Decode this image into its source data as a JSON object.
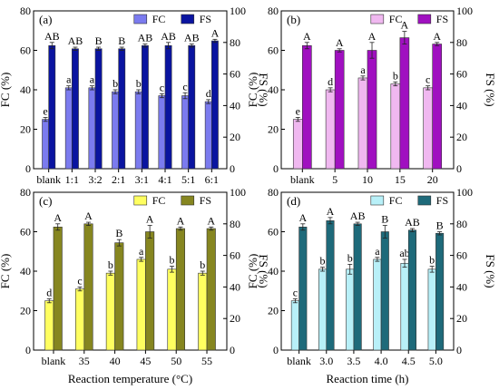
{
  "chart_data": [
    {
      "type": "bar",
      "panel_label": "(a)",
      "xlabel": "",
      "ylabel_left": "FC (%)",
      "ylabel_right": "FS (%)",
      "ylim_left": [
        0,
        80
      ],
      "ylim_right": [
        0,
        100
      ],
      "yticks_left": [
        "0",
        "20",
        "40",
        "60",
        "80"
      ],
      "yticks_right": [
        "0",
        "20",
        "40",
        "60",
        "80",
        "100"
      ],
      "legend_position": "top",
      "categories": [
        "blank",
        "1:1",
        "3:2",
        "2:1",
        "3:1",
        "4:1",
        "5:1",
        "6:1"
      ],
      "series": [
        {
          "name": "FC",
          "axis": "left",
          "color": "#7b7bef",
          "values": [
            25,
            41,
            41,
            39,
            39,
            37,
            37,
            34
          ],
          "errors": [
            1,
            1,
            1,
            1,
            1,
            1,
            1.5,
            1
          ],
          "labels": [
            "e",
            "a",
            "a",
            "b",
            "b",
            "c",
            "c",
            "d"
          ]
        },
        {
          "name": "FS",
          "axis": "right",
          "color": "#0a14a0",
          "values": [
            78,
            76,
            76,
            76,
            78,
            78,
            78,
            81
          ],
          "errors": [
            2,
            1,
            1,
            1,
            1,
            2,
            1,
            1
          ],
          "labels": [
            "AB",
            "AB",
            "B",
            "B",
            "AB",
            "AB",
            "AB",
            "A"
          ]
        }
      ]
    },
    {
      "type": "bar",
      "panel_label": "(b)",
      "xlabel": "",
      "ylabel_left": "FC (%)",
      "ylabel_right": "FS (%)",
      "ylim_left": [
        0,
        80
      ],
      "ylim_right": [
        0,
        100
      ],
      "yticks_left": [
        "0",
        "20",
        "40",
        "60",
        "80"
      ],
      "yticks_right": [
        "0",
        "20",
        "40",
        "60",
        "80",
        "100"
      ],
      "legend_position": "top",
      "categories": [
        "blank",
        "5",
        "10",
        "15",
        "20"
      ],
      "series": [
        {
          "name": "FC",
          "axis": "left",
          "color": "#f0b8f0",
          "values": [
            25,
            40,
            46,
            43,
            41
          ],
          "errors": [
            1,
            1,
            1,
            1,
            1
          ],
          "labels": [
            "e",
            "d",
            "a",
            "b",
            "c"
          ]
        },
        {
          "name": "FS",
          "axis": "right",
          "color": "#a010c0",
          "values": [
            78,
            75,
            75,
            83,
            79
          ],
          "errors": [
            2,
            1,
            5,
            4,
            1
          ],
          "labels": [
            "A",
            "A",
            "A",
            "A",
            "A"
          ]
        }
      ]
    },
    {
      "type": "bar",
      "panel_label": "(c)",
      "xlabel": "Reaction temperature (°C)",
      "ylabel_left": "FC (%)",
      "ylabel_right": "FS (%)",
      "ylim_left": [
        0,
        80
      ],
      "ylim_right": [
        0,
        100
      ],
      "yticks_left": [
        "0",
        "20",
        "40",
        "60",
        "80"
      ],
      "yticks_right": [
        "0",
        "20",
        "40",
        "60",
        "80",
        "100"
      ],
      "legend_position": "top",
      "categories": [
        "blank",
        "35",
        "40",
        "45",
        "50",
        "55"
      ],
      "series": [
        {
          "name": "FC",
          "axis": "left",
          "color": "#ffff60",
          "values": [
            25,
            31,
            39,
            46,
            41,
            39
          ],
          "errors": [
            1,
            1,
            1,
            1,
            1.5,
            1
          ],
          "labels": [
            "d",
            "c",
            "b",
            "a",
            "b",
            "b"
          ]
        },
        {
          "name": "FS",
          "axis": "right",
          "color": "#868620",
          "values": [
            78,
            80,
            68,
            75,
            77,
            77
          ],
          "errors": [
            2,
            1,
            2,
            4,
            1,
            1
          ],
          "labels": [
            "A",
            "A",
            "B",
            "A",
            "A",
            "A"
          ]
        }
      ]
    },
    {
      "type": "bar",
      "panel_label": "(d)",
      "xlabel": "Reaction time (h)",
      "ylabel_left": "FC (%)",
      "ylabel_right": "FS (%)",
      "ylim_left": [
        0,
        80
      ],
      "ylim_right": [
        0,
        100
      ],
      "yticks_left": [
        "0",
        "20",
        "40",
        "60",
        "80"
      ],
      "yticks_right": [
        "0",
        "20",
        "40",
        "60",
        "80",
        "100"
      ],
      "legend_position": "top",
      "categories": [
        "blank",
        "3.0",
        "3.5",
        "4.0",
        "4.5",
        "5.0"
      ],
      "series": [
        {
          "name": "FC",
          "axis": "left",
          "color": "#b8f0f8",
          "values": [
            25,
            41,
            41,
            46,
            44,
            41
          ],
          "errors": [
            1,
            1,
            2.5,
            1,
            2,
            1.5
          ],
          "labels": [
            "c",
            "b",
            "b",
            "a",
            "ab",
            "b"
          ]
        },
        {
          "name": "FS",
          "axis": "right",
          "color": "#1e6a7a",
          "values": [
            78,
            82,
            80,
            75,
            76,
            74
          ],
          "errors": [
            2,
            2,
            1,
            4,
            1,
            1
          ],
          "labels": [
            "A",
            "A",
            "AB",
            "B",
            "AB",
            "B"
          ]
        }
      ]
    }
  ]
}
